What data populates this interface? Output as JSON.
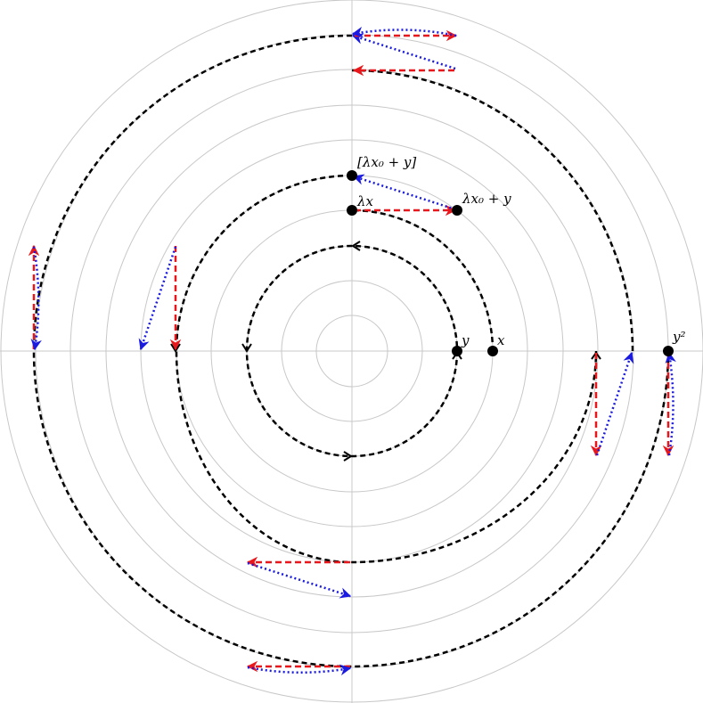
{
  "points": [
    {
      "label": "y"
    },
    {
      "label": "x"
    },
    {
      "label": "λx"
    },
    {
      "label": "λx₀ + y"
    },
    {
      "label": "[λx₀ + y]"
    },
    {
      "label": "y²"
    }
  ]
}
